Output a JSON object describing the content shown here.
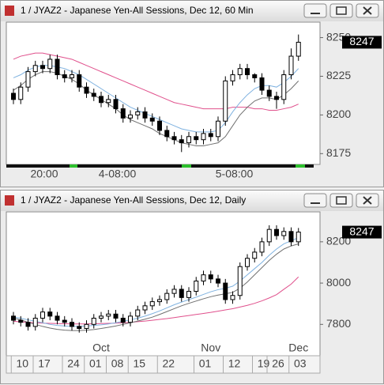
{
  "chart_data": [
    {
      "type": "candlestick",
      "title": "1 / JYAZ2 - Japanese Yen-All Sessions, Dec 12, 60 Min",
      "categories": [
        null,
        null,
        null,
        null,
        "20:00",
        null,
        null,
        null,
        null,
        null,
        null,
        null,
        null,
        null,
        "4-08:00",
        null,
        null,
        null,
        null,
        null,
        null,
        null,
        null,
        null,
        null,
        null,
        null,
        null,
        null,
        null,
        "5-08:00",
        null,
        null,
        null,
        null,
        null,
        null,
        null,
        null,
        null
      ],
      "open": [
        8214,
        8210,
        8218,
        8228,
        8232,
        8230,
        8236,
        8226,
        8224,
        8226,
        8218,
        8214,
        8212,
        8208,
        8210,
        8204,
        8198,
        8200,
        8202,
        8198,
        8196,
        8190,
        8186,
        8184,
        8182,
        8186,
        8184,
        8188,
        8186,
        8196,
        8222,
        8226,
        8230,
        8226,
        8224,
        8216,
        8212,
        8210,
        8226,
        8238
      ],
      "high": [
        8217,
        8221,
        8231,
        8235,
        8235,
        8239,
        8239,
        8229,
        8229,
        8229,
        8221,
        8217,
        8215,
        8213,
        8213,
        8207,
        8203,
        8205,
        8205,
        8201,
        8199,
        8193,
        8189,
        8187,
        8189,
        8189,
        8191,
        8191,
        8199,
        8225,
        8229,
        8233,
        8233,
        8227,
        8227,
        8219,
        8215,
        8229,
        8243,
        8252
      ],
      "low": [
        8207,
        8207,
        8215,
        8225,
        8227,
        8227,
        8223,
        8221,
        8221,
        8215,
        8211,
        8209,
        8205,
        8205,
        8201,
        8195,
        8195,
        8197,
        8195,
        8193,
        8187,
        8183,
        8181,
        8176,
        8179,
        8181,
        8181,
        8183,
        8183,
        8193,
        8219,
        8223,
        8223,
        8221,
        8213,
        8209,
        8204,
        8207,
        8223,
        8235
      ],
      "close": [
        8210,
        8218,
        8228,
        8232,
        8230,
        8236,
        8226,
        8224,
        8226,
        8218,
        8214,
        8212,
        8208,
        8210,
        8204,
        8198,
        8200,
        8202,
        8198,
        8196,
        8190,
        8186,
        8184,
        8182,
        8186,
        8184,
        8188,
        8186,
        8196,
        8222,
        8226,
        8230,
        8226,
        8224,
        8216,
        8212,
        8210,
        8226,
        8238,
        8247
      ],
      "series": [
        {
          "color": "#e0508c",
          "values": [
            8236,
            8238,
            8239,
            8240,
            8240,
            8239,
            8238,
            8237,
            8236,
            8234,
            8232,
            8230,
            8228,
            8226,
            8224,
            8222,
            8220,
            8218,
            8216,
            8214,
            8212,
            8210,
            8208,
            8207,
            8206,
            8205,
            8204,
            8204,
            8204,
            8204,
            8205,
            8205,
            8205,
            8204,
            8204,
            8203,
            8203,
            8204,
            8205,
            8207
          ]
        },
        {
          "color": "#7fb2e0",
          "values": [
            8224,
            8226,
            8229,
            8231,
            8232,
            8232,
            8231,
            8230,
            8228,
            8226,
            8223,
            8220,
            8217,
            8214,
            8211,
            8208,
            8205,
            8203,
            8201,
            8199,
            8197,
            8195,
            8193,
            8191,
            8190,
            8189,
            8189,
            8189,
            8190,
            8195,
            8202,
            8208,
            8213,
            8217,
            8219,
            8219,
            8218,
            8221,
            8225,
            8230
          ]
        },
        {
          "color": "#707070",
          "values": [
            8216,
            8219,
            8223,
            8226,
            8228,
            8228,
            8227,
            8225,
            8223,
            8220,
            8216,
            8213,
            8210,
            8207,
            8204,
            8200,
            8197,
            8195,
            8193,
            8191,
            8188,
            8186,
            8184,
            8182,
            8181,
            8180,
            8180,
            8181,
            8182,
            8186,
            8193,
            8200,
            8205,
            8209,
            8211,
            8211,
            8210,
            8213,
            8217,
            8222
          ]
        }
      ],
      "ylim": [
        8168,
        8260
      ],
      "yticks": [
        8175,
        8200,
        8225,
        8250
      ],
      "last_price": 8247
    },
    {
      "type": "candlestick",
      "title": "1 / JYAZ2 - Japanese Yen-All Sessions, Dec 12, Daily",
      "categories": [
        null,
        "10",
        null,
        null,
        "17",
        null,
        null,
        null,
        "24",
        null,
        null,
        "01",
        null,
        null,
        "08",
        null,
        null,
        "15",
        null,
        null,
        null,
        "22",
        null,
        null,
        null,
        null,
        "01",
        null,
        null,
        null,
        "12",
        null,
        null,
        null,
        "19",
        null,
        "26",
        null,
        null,
        "03"
      ],
      "months": [
        null,
        null,
        null,
        null,
        null,
        null,
        null,
        null,
        null,
        null,
        null,
        null,
        "Oct",
        null,
        null,
        null,
        null,
        null,
        null,
        null,
        null,
        null,
        null,
        null,
        null,
        null,
        null,
        "Nov",
        null,
        null,
        null,
        null,
        null,
        null,
        null,
        null,
        null,
        null,
        null,
        "Dec"
      ],
      "open": [
        7840,
        7820,
        7810,
        7790,
        7830,
        7860,
        7840,
        7820,
        7810,
        7790,
        7780,
        7800,
        7830,
        7840,
        7850,
        7830,
        7810,
        7840,
        7870,
        7890,
        7910,
        7920,
        7950,
        7970,
        7930,
        7960,
        8010,
        8040,
        8020,
        8000,
        7920,
        7940,
        8080,
        8120,
        8150,
        8200,
        8260,
        8230,
        8250,
        8200
      ],
      "high": [
        7860,
        7840,
        7830,
        7850,
        7880,
        7880,
        7860,
        7840,
        7830,
        7810,
        7820,
        7850,
        7860,
        7870,
        7870,
        7850,
        7860,
        7890,
        7910,
        7930,
        7940,
        7970,
        7990,
        7990,
        7980,
        8030,
        8060,
        8060,
        8040,
        8020,
        7960,
        8100,
        8140,
        8170,
        8220,
        8280,
        8280,
        8270,
        8270,
        8267
      ],
      "low": [
        7800,
        7790,
        7770,
        7770,
        7810,
        7820,
        7800,
        7790,
        7770,
        7760,
        7760,
        7780,
        7810,
        7820,
        7810,
        7790,
        7790,
        7820,
        7850,
        7870,
        7890,
        7900,
        7930,
        7910,
        7910,
        7940,
        7990,
        8000,
        7980,
        7900,
        7900,
        7920,
        8060,
        8100,
        8130,
        8180,
        8210,
        8210,
        8180,
        8180
      ],
      "close": [
        7820,
        7810,
        7790,
        7830,
        7860,
        7840,
        7820,
        7810,
        7790,
        7780,
        7800,
        7830,
        7840,
        7850,
        7830,
        7810,
        7840,
        7870,
        7890,
        7910,
        7920,
        7950,
        7970,
        7930,
        7960,
        8010,
        8040,
        8020,
        8000,
        7920,
        7940,
        8080,
        8120,
        8150,
        8200,
        8260,
        8230,
        8250,
        8200,
        8247
      ],
      "series": [
        {
          "color": "#e0508c",
          "values": [
            7815,
            7812,
            7810,
            7808,
            7806,
            7805,
            7804,
            7803,
            7802,
            7802,
            7802,
            7803,
            7804,
            7805,
            7806,
            7808,
            7810,
            7813,
            7816,
            7820,
            7824,
            7828,
            7833,
            7838,
            7843,
            7848,
            7853,
            7858,
            7864,
            7870,
            7876,
            7884,
            7892,
            7902,
            7914,
            7928,
            7944,
            7970,
            7995,
            8030
          ]
        },
        {
          "color": "#7fb2e0",
          "values": [
            7835,
            7830,
            7822,
            7815,
            7808,
            7800,
            7795,
            7792,
            7790,
            7790,
            7792,
            7795,
            7798,
            7802,
            7808,
            7815,
            7822,
            7830,
            7840,
            7852,
            7865,
            7880,
            7895,
            7908,
            7920,
            7932,
            7945,
            7958,
            7968,
            7975,
            7985,
            8010,
            8040,
            8070,
            8100,
            8135,
            8165,
            8190,
            8205,
            8220
          ]
        },
        {
          "color": "#707070",
          "values": [
            7830,
            7822,
            7810,
            7800,
            7790,
            7782,
            7776,
            7772,
            7770,
            7770,
            7772,
            7775,
            7780,
            7786,
            7792,
            7800,
            7808,
            7816,
            7825,
            7835,
            7848,
            7862,
            7876,
            7890,
            7902,
            7913,
            7924,
            7934,
            7942,
            7948,
            7955,
            7975,
            8005,
            8040,
            8075,
            8110,
            8140,
            8165,
            8180,
            8190
          ]
        }
      ],
      "ylim": [
        7648,
        8345
      ],
      "yticks": [
        7800,
        8000,
        8200
      ],
      "last_price": 8247
    }
  ]
}
